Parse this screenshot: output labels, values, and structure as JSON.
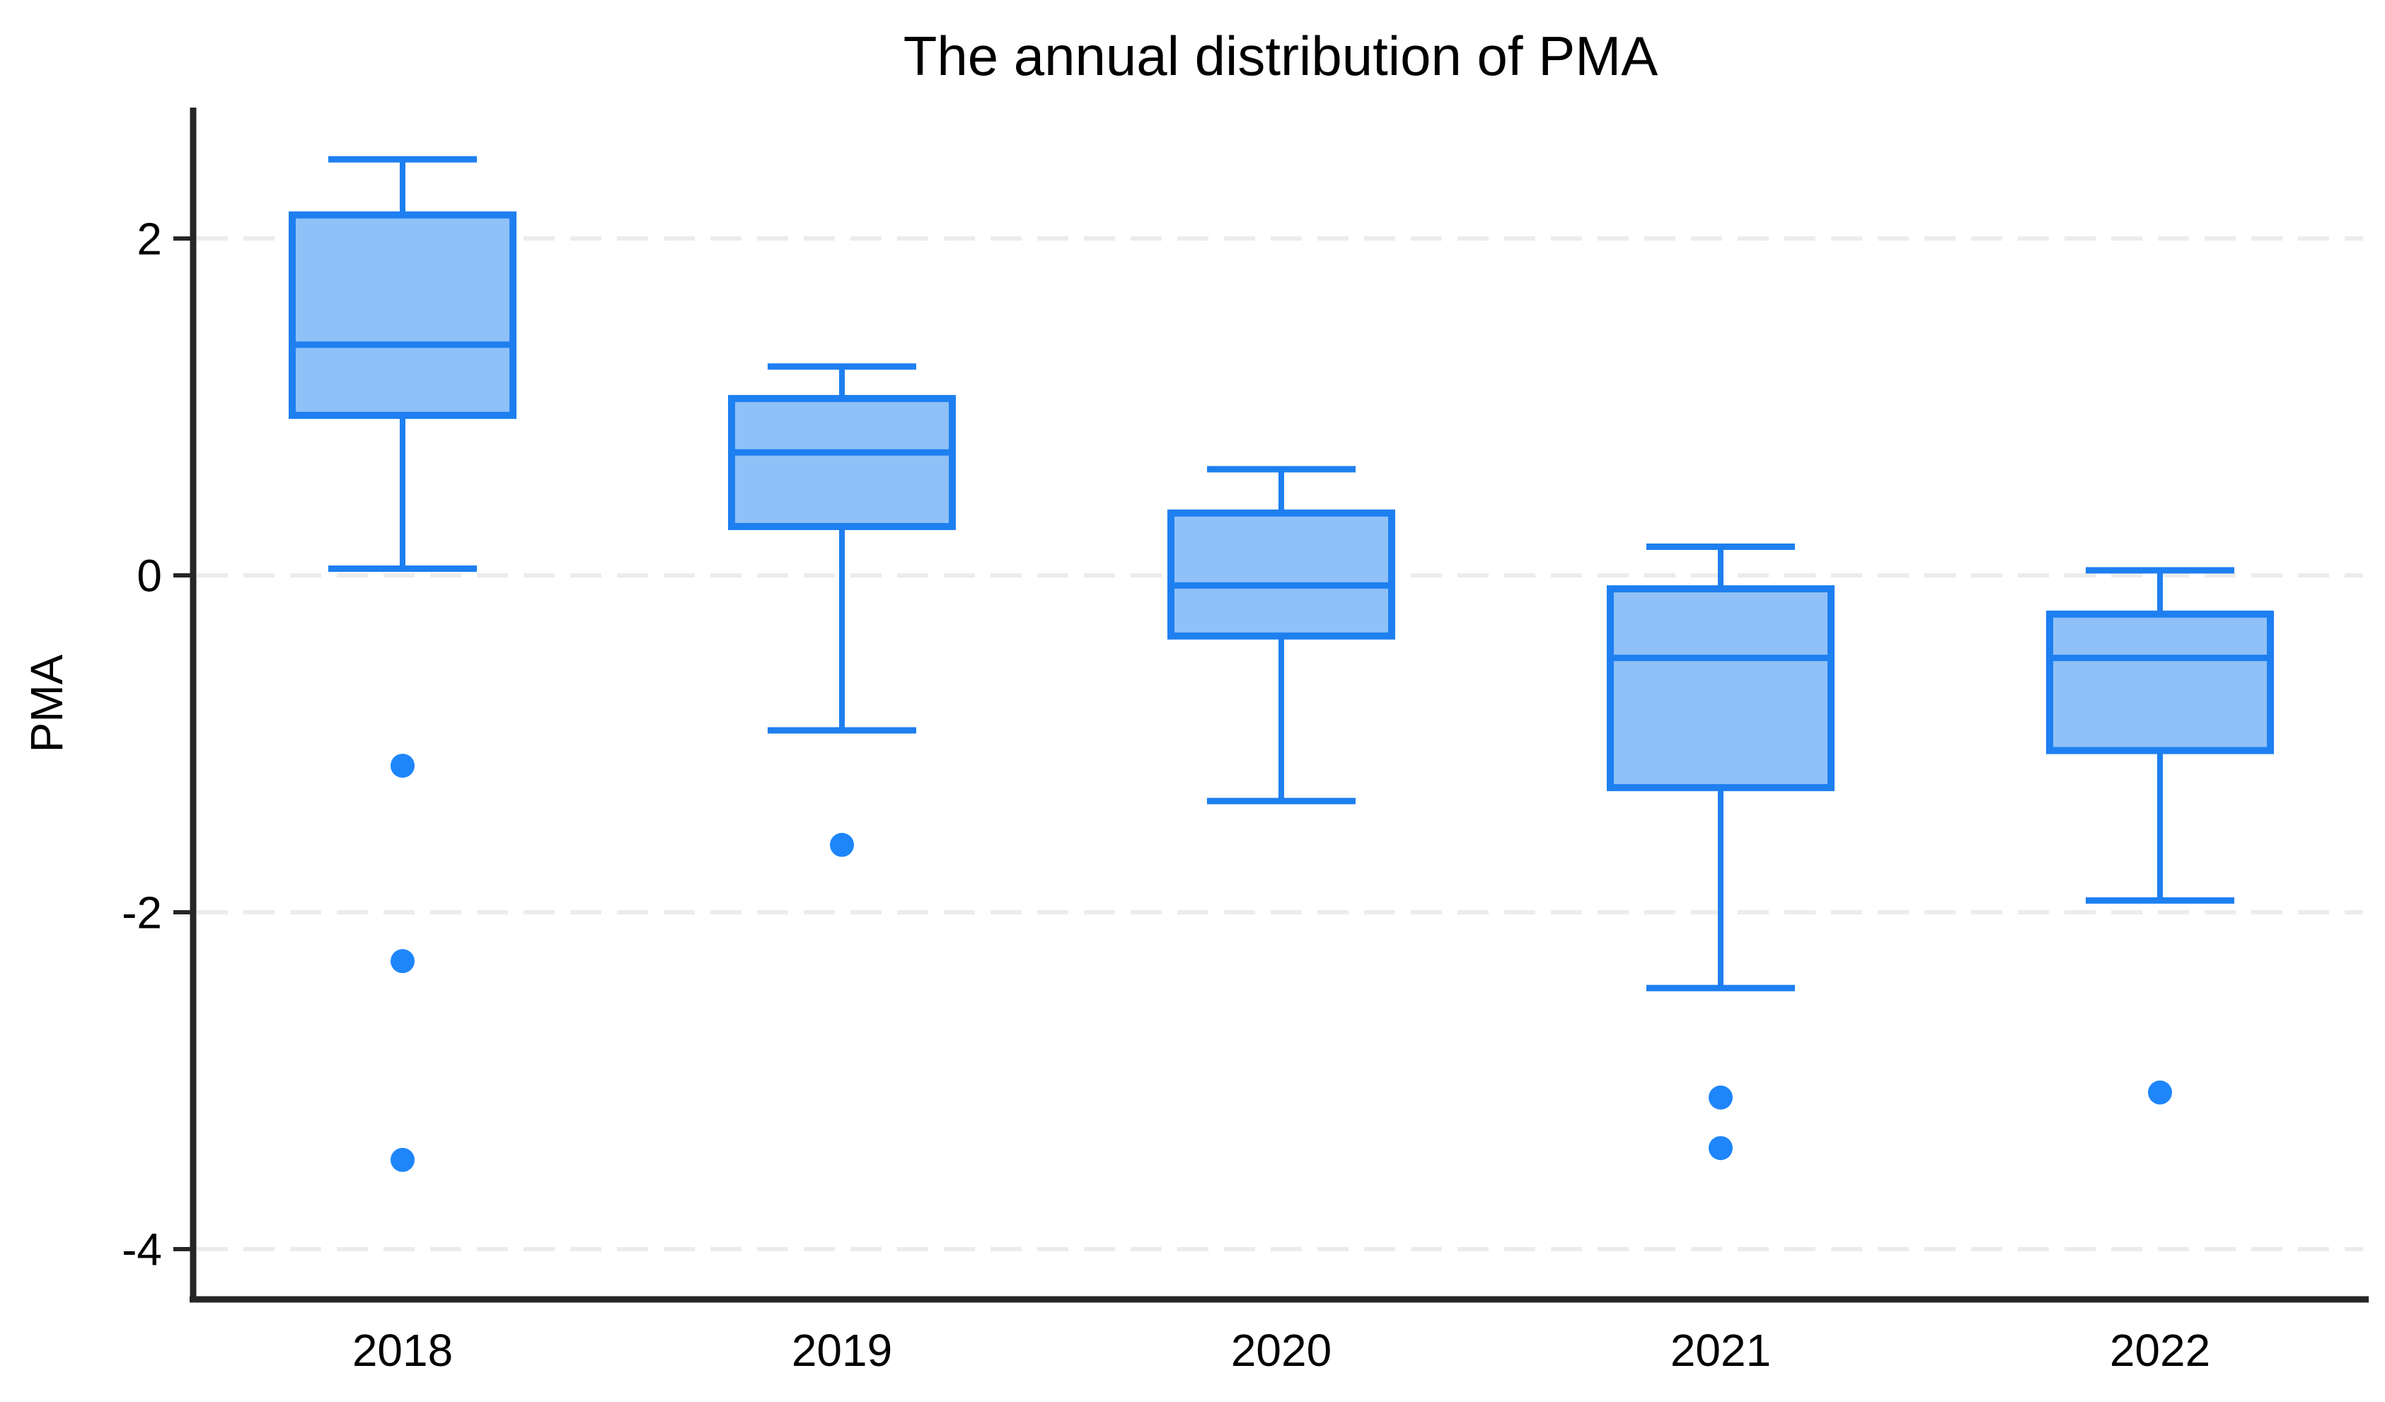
{
  "chart_data": {
    "type": "box",
    "title": "The annual distribution of PMA",
    "xlabel": "",
    "ylabel": "PMA",
    "categories": [
      "2018",
      "2019",
      "2020",
      "2021",
      "2022"
    ],
    "y_ticks": [
      2,
      0,
      -2,
      -4
    ],
    "ylim": [
      -4.3,
      2.78
    ],
    "grid": "horizontal-dashed",
    "legend_position": "none",
    "series": [
      {
        "category": "2018",
        "whisker_low": 0.04,
        "q1": 0.95,
        "median": 1.37,
        "q3": 2.14,
        "whisker_high": 2.47,
        "outliers": [
          -1.13,
          -2.29,
          -3.47
        ]
      },
      {
        "category": "2019",
        "whisker_low": -0.92,
        "q1": 0.29,
        "median": 0.73,
        "q3": 1.05,
        "whisker_high": 1.24,
        "outliers": [
          -1.6
        ]
      },
      {
        "category": "2020",
        "whisker_low": -1.34,
        "q1": -0.36,
        "median": -0.06,
        "q3": 0.37,
        "whisker_high": 0.63,
        "outliers": []
      },
      {
        "category": "2021",
        "whisker_low": -2.45,
        "q1": -1.26,
        "median": -0.49,
        "q3": -0.08,
        "whisker_high": 0.17,
        "outliers": [
          -3.1,
          -3.4
        ]
      },
      {
        "category": "2022",
        "whisker_low": -1.93,
        "q1": -1.04,
        "median": -0.49,
        "q3": -0.23,
        "whisker_high": 0.03,
        "outliers": [
          -3.07
        ]
      }
    ],
    "colors": {
      "box_fill": "#8FC1F8",
      "box_line": "#1E7FF0",
      "outlier_dot": "#1E86FA",
      "axis": "#262626",
      "gridline": "#ECECEC",
      "text": "#000000"
    }
  }
}
